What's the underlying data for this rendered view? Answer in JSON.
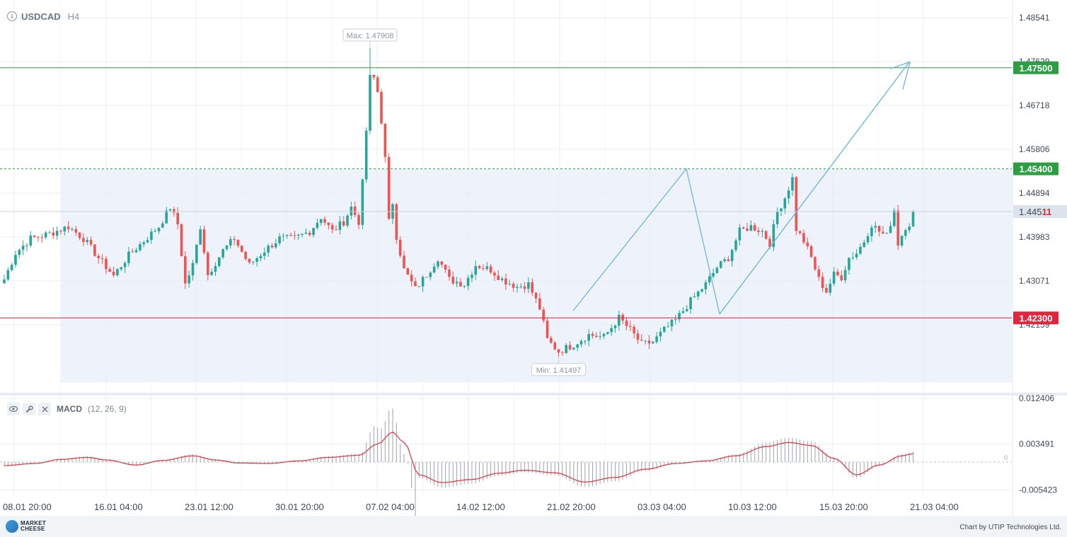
{
  "header": {
    "symbol": "USDCAD",
    "timeframe": "H4",
    "info_icon": "info-icon"
  },
  "chart_data": [
    {
      "type": "candlestick",
      "symbol": "USDCAD",
      "timeframe": "H4",
      "x_tick_labels": [
        "08.01 20:00",
        "16.01 04:00",
        "23.01 12:00",
        "30.01 20:00",
        "07.02 04:00",
        "14.02 12:00",
        "21.02 20:00",
        "03.03 04:00",
        "10.03 12:00",
        "15.03 20:00",
        "21.03 04:00"
      ],
      "y_tick_labels": [
        "1.48541",
        "1.47629",
        "1.46718",
        "1.45806",
        "1.44894",
        "1.43983",
        "1.43071",
        "1.42159"
      ],
      "ylim": [
        1.4079,
        1.4885
      ],
      "current_price": "1.44511",
      "current_price_parts": {
        "head": "1.445",
        "tail": "11"
      },
      "max_label": "Max: 1.47908",
      "min_label": "Min: 1.41497",
      "levels": [
        {
          "value": "1.47500",
          "color": "#2e9e44",
          "style": "solid"
        },
        {
          "value": "1.45400",
          "color": "#2e9e44",
          "style": "dashed"
        },
        {
          "value": "1.42300",
          "color": "#e0263c",
          "style": "solid"
        }
      ],
      "colors": {
        "up": "#26a69a",
        "down": "#ef5350",
        "drawing": "#6fb8d9",
        "zone": "#eef2fb"
      },
      "anchors": [
        {
          "x": 0,
          "y": 1.431
        },
        {
          "x": 3,
          "y": 1.4365
        },
        {
          "x": 7,
          "y": 1.4395
        },
        {
          "x": 12,
          "y": 1.4405
        },
        {
          "x": 17,
          "y": 1.442
        },
        {
          "x": 21,
          "y": 1.4395
        },
        {
          "x": 25,
          "y": 1.4355
        },
        {
          "x": 29,
          "y": 1.4318
        },
        {
          "x": 33,
          "y": 1.436
        },
        {
          "x": 37,
          "y": 1.439
        },
        {
          "x": 41,
          "y": 1.442
        },
        {
          "x": 44,
          "y": 1.446
        },
        {
          "x": 46,
          "y": 1.4425
        },
        {
          "x": 48,
          "y": 1.43
        },
        {
          "x": 50,
          "y": 1.434
        },
        {
          "x": 52,
          "y": 1.442
        },
        {
          "x": 54,
          "y": 1.432
        },
        {
          "x": 58,
          "y": 1.437
        },
        {
          "x": 61,
          "y": 1.4395
        },
        {
          "x": 65,
          "y": 1.434
        },
        {
          "x": 69,
          "y": 1.437
        },
        {
          "x": 73,
          "y": 1.4395
        },
        {
          "x": 77,
          "y": 1.4395
        },
        {
          "x": 81,
          "y": 1.441
        },
        {
          "x": 84,
          "y": 1.444
        },
        {
          "x": 87,
          "y": 1.441
        },
        {
          "x": 90,
          "y": 1.443
        },
        {
          "x": 92,
          "y": 1.446
        },
        {
          "x": 94,
          "y": 1.443
        },
        {
          "x": 95,
          "y": 1.451
        },
        {
          "x": 97,
          "y": 1.473
        },
        {
          "x": 98,
          "y": 1.4735
        },
        {
          "x": 99,
          "y": 1.47
        },
        {
          "x": 100,
          "y": 1.464
        },
        {
          "x": 101,
          "y": 1.456
        },
        {
          "x": 102,
          "y": 1.443
        },
        {
          "x": 103,
          "y": 1.447
        },
        {
          "x": 104,
          "y": 1.44
        },
        {
          "x": 106,
          "y": 1.433
        },
        {
          "x": 109,
          "y": 1.429
        },
        {
          "x": 112,
          "y": 1.432
        },
        {
          "x": 115,
          "y": 1.4355
        },
        {
          "x": 118,
          "y": 1.431
        },
        {
          "x": 122,
          "y": 1.43
        },
        {
          "x": 125,
          "y": 1.434
        },
        {
          "x": 129,
          "y": 1.433
        },
        {
          "x": 132,
          "y": 1.431
        },
        {
          "x": 136,
          "y": 1.4295
        },
        {
          "x": 139,
          "y": 1.43
        },
        {
          "x": 142,
          "y": 1.425
        },
        {
          "x": 144,
          "y": 1.4185
        },
        {
          "x": 147,
          "y": 1.416
        },
        {
          "x": 151,
          "y": 1.4175
        },
        {
          "x": 155,
          "y": 1.4195
        },
        {
          "x": 159,
          "y": 1.419
        },
        {
          "x": 163,
          "y": 1.423
        },
        {
          "x": 166,
          "y": 1.4205
        },
        {
          "x": 169,
          "y": 1.4175
        },
        {
          "x": 172,
          "y": 1.418
        },
        {
          "x": 175,
          "y": 1.4205
        },
        {
          "x": 178,
          "y": 1.4225
        },
        {
          "x": 182,
          "y": 1.4265
        },
        {
          "x": 186,
          "y": 1.43
        },
        {
          "x": 189,
          "y": 1.4335
        },
        {
          "x": 192,
          "y": 1.4355
        },
        {
          "x": 195,
          "y": 1.441
        },
        {
          "x": 198,
          "y": 1.442
        },
        {
          "x": 201,
          "y": 1.441
        },
        {
          "x": 203,
          "y": 1.4385
        },
        {
          "x": 205,
          "y": 1.445
        },
        {
          "x": 207,
          "y": 1.448
        },
        {
          "x": 209,
          "y": 1.452
        },
        {
          "x": 210,
          "y": 1.4415
        },
        {
          "x": 212,
          "y": 1.439
        },
        {
          "x": 214,
          "y": 1.4355
        },
        {
          "x": 216,
          "y": 1.431
        },
        {
          "x": 218,
          "y": 1.4285
        },
        {
          "x": 220,
          "y": 1.432
        },
        {
          "x": 222,
          "y": 1.4315
        },
        {
          "x": 224,
          "y": 1.4355
        },
        {
          "x": 226,
          "y": 1.4365
        },
        {
          "x": 228,
          "y": 1.439
        },
        {
          "x": 230,
          "y": 1.4425
        },
        {
          "x": 232,
          "y": 1.441
        },
        {
          "x": 234,
          "y": 1.44
        },
        {
          "x": 236,
          "y": 1.4455
        },
        {
          "x": 237,
          "y": 1.4385
        },
        {
          "x": 239,
          "y": 1.442
        },
        {
          "x": 241,
          "y": 1.4432
        }
      ],
      "macd": {
        "name": "MACD",
        "params": "(12, 26, 9)",
        "y_tick_labels": [
          "0.012406",
          "0.003491",
          "-0.005423"
        ],
        "ylim": [
          -0.0062,
          0.0128
        ],
        "zero_label": "0",
        "color_line": "#d9404a",
        "color_hist": "#9aa3ad",
        "anchors": [
          {
            "x": 0,
            "y": -0.0007
          },
          {
            "x": 8,
            "y": -0.0003
          },
          {
            "x": 15,
            "y": 0.0005
          },
          {
            "x": 22,
            "y": 0.0009
          },
          {
            "x": 27,
            "y": 0.0004
          },
          {
            "x": 35,
            "y": -0.0006
          },
          {
            "x": 42,
            "y": 0.0003
          },
          {
            "x": 50,
            "y": 0.0012
          },
          {
            "x": 56,
            "y": 0.0004
          },
          {
            "x": 62,
            "y": -0.0002
          },
          {
            "x": 70,
            "y": -0.0003
          },
          {
            "x": 78,
            "y": 0.0002
          },
          {
            "x": 86,
            "y": 0.0009
          },
          {
            "x": 94,
            "y": 0.0013
          },
          {
            "x": 99,
            "y": 0.0035
          },
          {
            "x": 103,
            "y": 0.0058
          },
          {
            "x": 106,
            "y": 0.0038
          },
          {
            "x": 110,
            "y": -0.0025
          },
          {
            "x": 116,
            "y": -0.004
          },
          {
            "x": 124,
            "y": -0.0034
          },
          {
            "x": 131,
            "y": -0.0022
          },
          {
            "x": 138,
            "y": -0.0016
          },
          {
            "x": 146,
            "y": -0.0021
          },
          {
            "x": 154,
            "y": -0.0039
          },
          {
            "x": 162,
            "y": -0.003
          },
          {
            "x": 170,
            "y": -0.0014
          },
          {
            "x": 178,
            "y": -0.0003
          },
          {
            "x": 186,
            "y": 0.0002
          },
          {
            "x": 194,
            "y": 0.0012
          },
          {
            "x": 202,
            "y": 0.003
          },
          {
            "x": 208,
            "y": 0.0038
          },
          {
            "x": 214,
            "y": 0.0032
          },
          {
            "x": 220,
            "y": 0.0007
          },
          {
            "x": 226,
            "y": -0.0025
          },
          {
            "x": 232,
            "y": -0.0006
          },
          {
            "x": 238,
            "y": 0.0012
          },
          {
            "x": 241,
            "y": 0.0016
          }
        ]
      }
    }
  ],
  "footer": {
    "logo_line1": "MARKET",
    "logo_line2": "CHEESE",
    "credit": "Chart by UTIP Technologies Ltd."
  }
}
